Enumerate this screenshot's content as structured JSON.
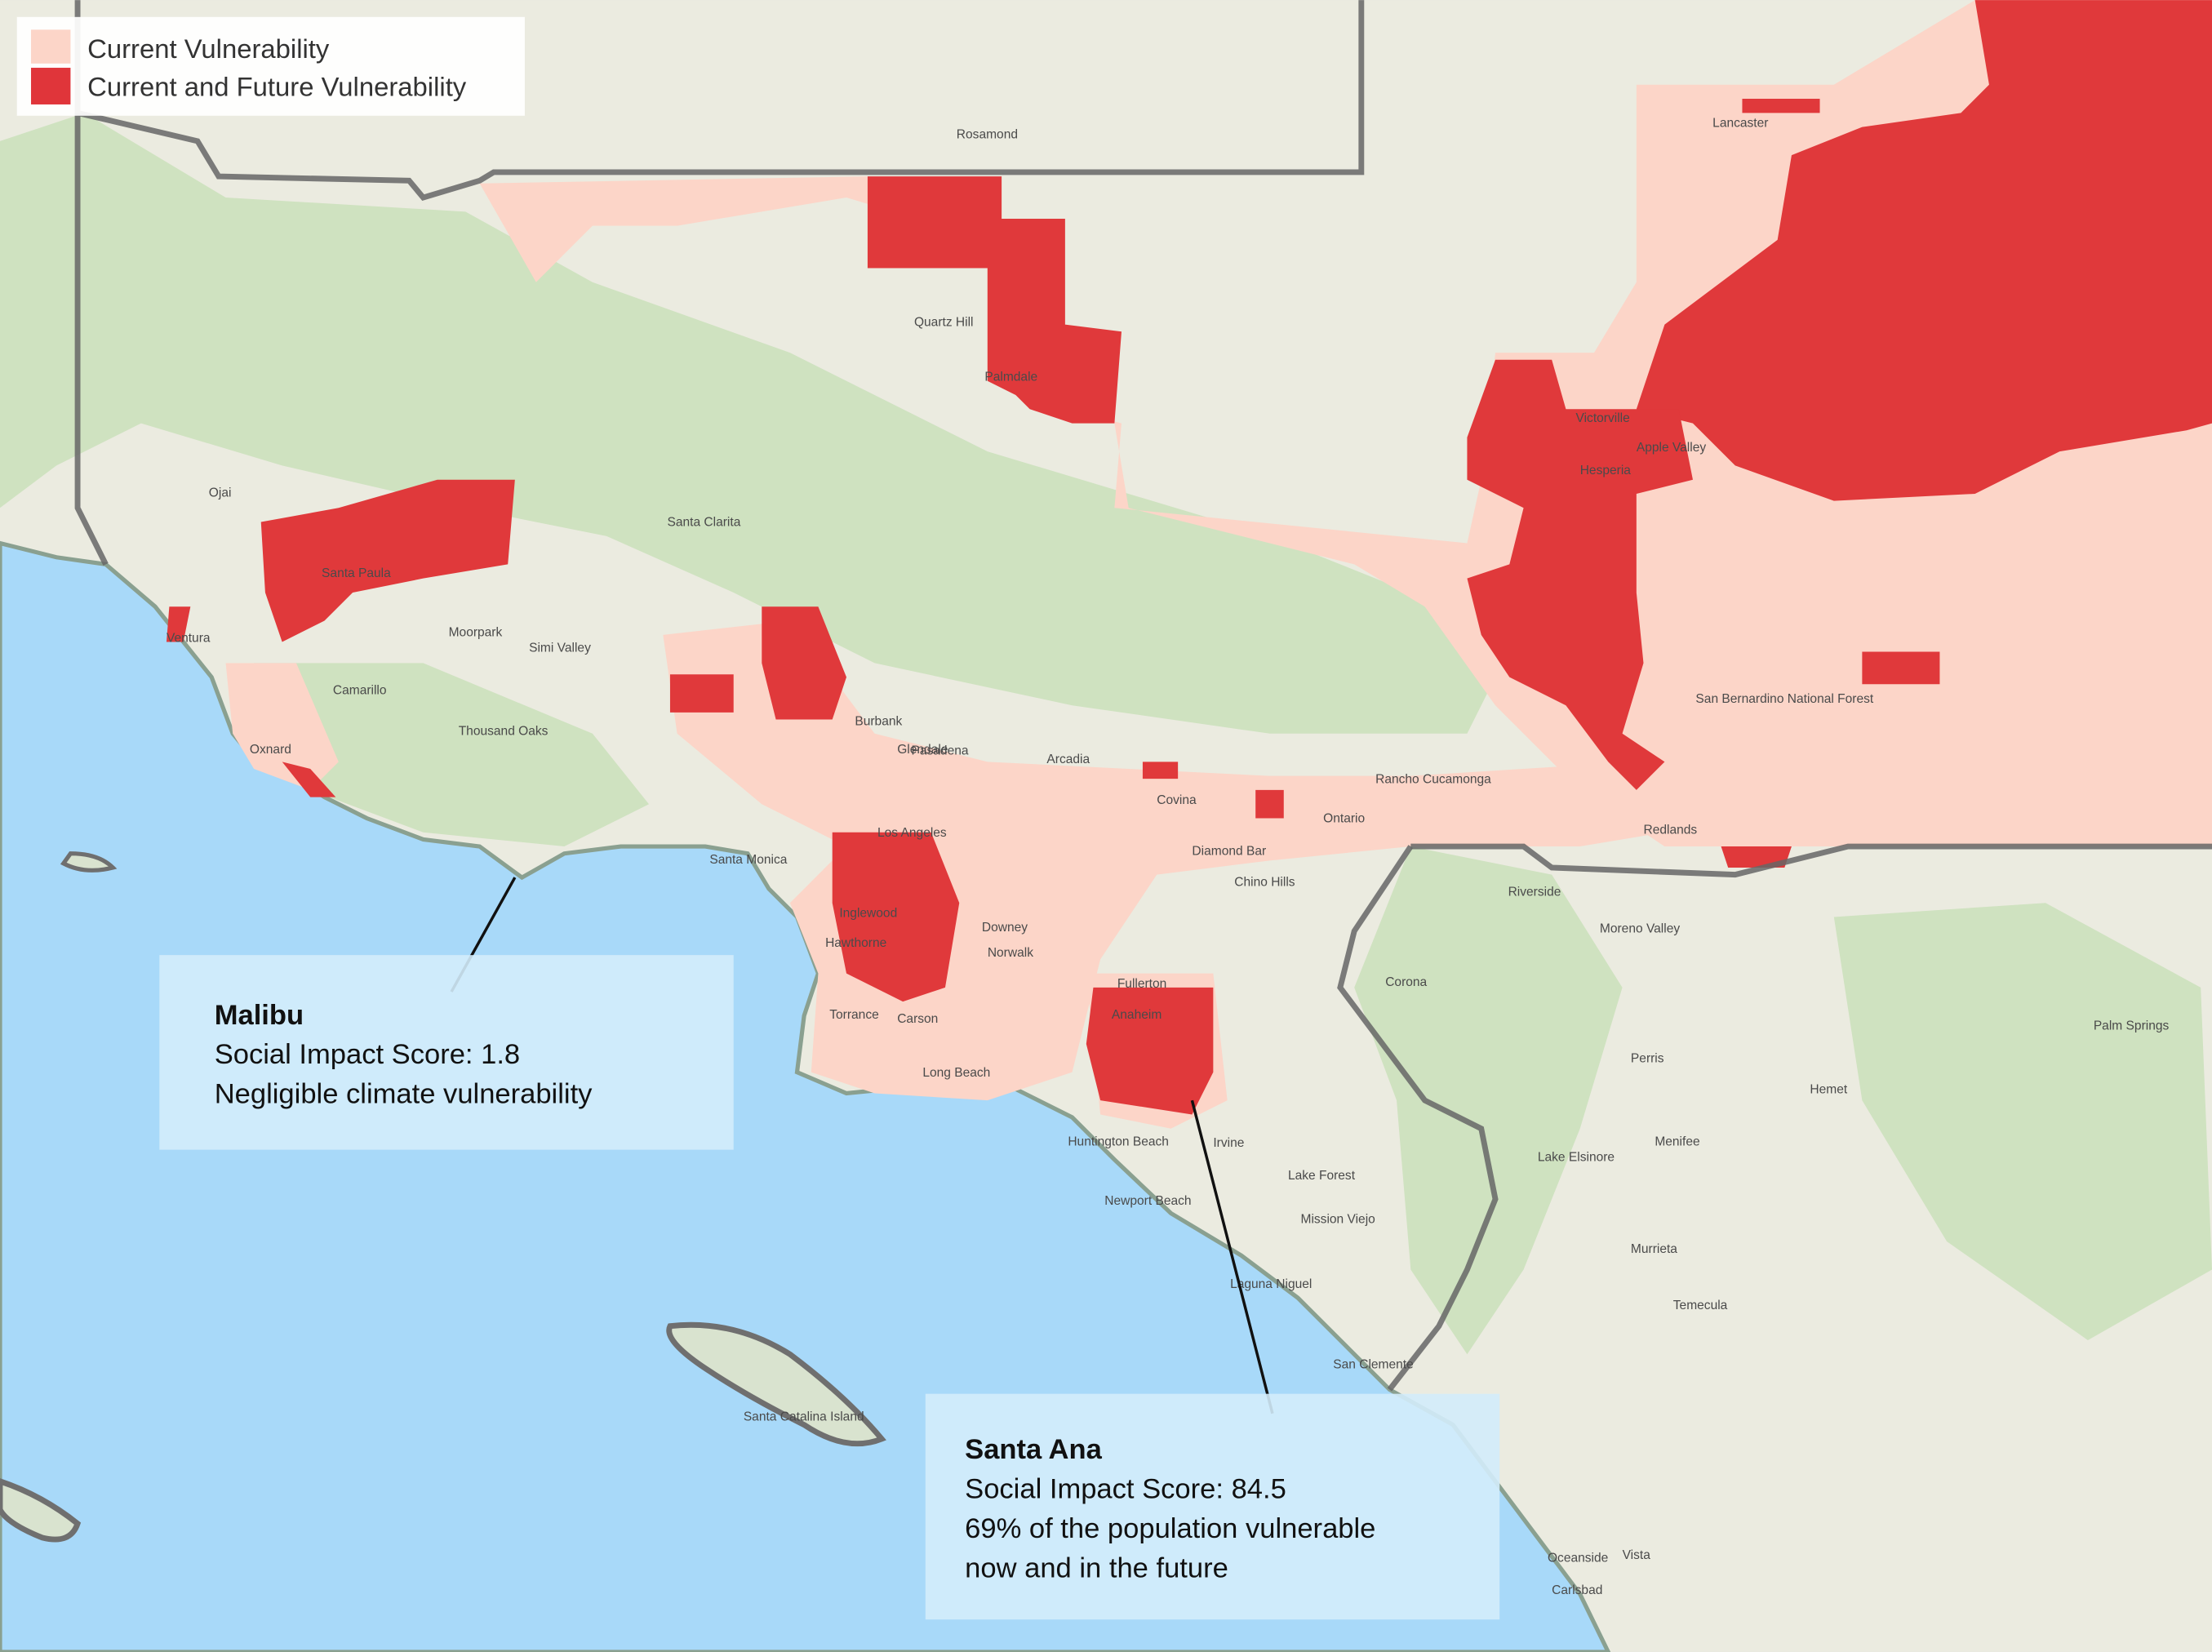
{
  "legend": {
    "items": [
      {
        "label": "Current Vulnerability",
        "color": "#fcd5c8"
      },
      {
        "label": "Current and Future Vulnerability",
        "color": "#e0353a"
      }
    ]
  },
  "callouts": [
    {
      "title": "Malibu",
      "lines": [
        "Social Impact Score: 1.8",
        "Negligible climate vulnerability"
      ]
    },
    {
      "title": "Santa Ana",
      "lines": [
        "Social Impact Score: 84.5",
        "69% of the population vulnerable",
        "now and in the future"
      ]
    }
  ],
  "places": [
    "Los Angeles",
    "Santa Clarita",
    "Santa Monica",
    "Pasadena",
    "Burbank",
    "Glendale",
    "Arcadia",
    "Riverside",
    "Rancho Cucamonga",
    "Ontario",
    "Redlands",
    "San Bernardino National Forest",
    "Palmdale",
    "Lancaster",
    "Quartz Hill",
    "Victorville",
    "Hesperia",
    "Apple Valley",
    "Thousand Oaks",
    "Simi Valley",
    "Camarillo",
    "Oxnard",
    "Ventura",
    "Moorpark",
    "Santa Paula",
    "Ojai",
    "Torrance",
    "Inglewood",
    "Hawthorne",
    "Downey",
    "Norwalk",
    "Carson",
    "Long Beach",
    "Fullerton",
    "Anaheim",
    "Irvine",
    "Huntington Beach",
    "Newport Beach",
    "Lake Forest",
    "Mission Viejo",
    "Laguna Niguel",
    "San Clemente",
    "Corona",
    "Moreno Valley",
    "Perris",
    "Hemet",
    "Menifee",
    "Murrieta",
    "Temecula",
    "Palm Springs",
    "Chino Hills",
    "Diamond Bar",
    "Covina",
    "Oceanside",
    "Carlsbad",
    "Vista",
    "Rosamond",
    "Lake Elsinore",
    "Santa Catalina Island"
  ]
}
